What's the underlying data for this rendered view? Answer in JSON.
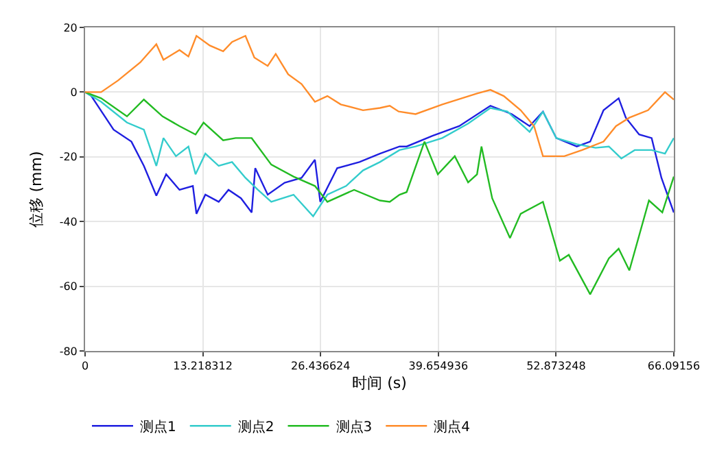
{
  "chart_data": {
    "type": "line",
    "xlabel": "时间 (s)",
    "ylabel": "位移 (mm)",
    "xlim": [
      0,
      66.09156
    ],
    "xticks": [
      0,
      13.218312,
      26.436624,
      39.654936,
      52.873248,
      66.09156
    ],
    "ylim": [
      -80,
      20
    ],
    "yticks": [
      -80,
      -60,
      -40,
      -20,
      0,
      20
    ],
    "grid": true,
    "legend": "bottom left",
    "marker": "none",
    "line_style": "solid",
    "series": [
      {
        "name": "测点1",
        "color": "#1f1fe0",
        "x": [
          0,
          0.7,
          3.2,
          5.2,
          6.6,
          8.0,
          9.1,
          10.6,
          12.1,
          12.5,
          13.5,
          15.0,
          16.1,
          17.5,
          18.7,
          19.1,
          20.5,
          22.4,
          24.3,
          25.8,
          26.4,
          28.3,
          30.8,
          33.1,
          35.3,
          36.1,
          39.0,
          42.0,
          45.5,
          47.9,
          49.9,
          51.4,
          52.9,
          55.2,
          56.7,
          58.2,
          59.9,
          60.7,
          62.2,
          63.6,
          64.7,
          66.09
        ],
        "values": [
          0,
          -1.2,
          -11.6,
          -15.3,
          -22.8,
          -32,
          -25.4,
          -30.2,
          -29,
          -37.6,
          -31.7,
          -33.9,
          -30.2,
          -32.8,
          -37.2,
          -23.5,
          -31.7,
          -28,
          -26.5,
          -20.9,
          -33.9,
          -23.5,
          -21.6,
          -19,
          -16.8,
          -16.8,
          -13.5,
          -10.5,
          -4.2,
          -6.8,
          -10.5,
          -6,
          -14.2,
          -16.8,
          -15.3,
          -5.6,
          -1.9,
          -7.9,
          -13.1,
          -14.2,
          -26.5,
          -37.2
        ]
      },
      {
        "name": "测点2",
        "color": "#33cccc",
        "x": [
          0,
          1.8,
          4.7,
          6.6,
          8.0,
          8.8,
          10.2,
          11.6,
          12.4,
          13.5,
          15.0,
          16.5,
          18.0,
          19.4,
          20.9,
          23.4,
          25.6,
          27.2,
          29.3,
          31.2,
          33.1,
          35.3,
          37.1,
          40.1,
          43.0,
          45.5,
          47.4,
          49.9,
          51.4,
          52.9,
          55.2,
          57.3,
          58.8,
          60.2,
          61.7,
          63.6,
          65.1,
          66.09
        ],
        "values": [
          0,
          -3,
          -9.4,
          -11.6,
          -22.8,
          -14.2,
          -19.8,
          -16.8,
          -25.4,
          -19,
          -22.8,
          -21.6,
          -26.5,
          -30.2,
          -33.9,
          -31.7,
          -38.4,
          -31.7,
          -29,
          -24.2,
          -21.6,
          -17.9,
          -16.8,
          -14.2,
          -9.7,
          -4.9,
          -6,
          -12.3,
          -6,
          -14.2,
          -16.1,
          -17.2,
          -16.8,
          -20.5,
          -17.9,
          -17.9,
          -19,
          -14.2
        ]
      },
      {
        "name": "测点3",
        "color": "#22bb22",
        "x": [
          0,
          1.8,
          4.7,
          6.6,
          8.7,
          10.6,
          12.4,
          13.3,
          15.5,
          16.9,
          18.7,
          20.9,
          23.4,
          25.8,
          27.2,
          30.2,
          33.1,
          34.2,
          35.3,
          36.1,
          38.1,
          39.6,
          41.5,
          43.0,
          44.0,
          44.5,
          45.7,
          47.7,
          48.9,
          51.4,
          53.3,
          54.3,
          56.7,
          58.8,
          59.9,
          61.1,
          63.3,
          64.8,
          66.09
        ],
        "values": [
          0,
          -1.9,
          -7.5,
          -2.3,
          -7.5,
          -10.5,
          -13.1,
          -9.4,
          -14.9,
          -14.2,
          -14.2,
          -22.4,
          -26.1,
          -29,
          -33.9,
          -30.2,
          -33.5,
          -33.9,
          -31.7,
          -30.9,
          -15.3,
          -25.4,
          -19.8,
          -27.9,
          -25.4,
          -16.8,
          -32.8,
          -45.1,
          -37.6,
          -33.9,
          -52.1,
          -50.3,
          -62.5,
          -51.4,
          -48.4,
          -55.1,
          -33.5,
          -37.2,
          -26.1
        ]
      },
      {
        "name": "测点4",
        "color": "#ff8c2a",
        "x": [
          0,
          1.8,
          3.7,
          6.2,
          8.0,
          8.8,
          10.6,
          11.6,
          12.5,
          14.0,
          15.5,
          16.5,
          18.0,
          19.0,
          20.5,
          21.4,
          22.8,
          24.3,
          25.8,
          27.2,
          28.7,
          31.2,
          33.1,
          34.2,
          35.2,
          37.1,
          40.1,
          44.0,
          45.5,
          47.0,
          48.9,
          50.4,
          51.4,
          53.8,
          55.8,
          58.2,
          59.6,
          61.1,
          63.2,
          65.1,
          66.09
        ],
        "values": [
          0,
          0,
          3.6,
          9.2,
          14.8,
          10,
          13,
          11,
          17.4,
          14.4,
          12.6,
          15.5,
          17.4,
          10.7,
          8.1,
          11.8,
          5.5,
          2.5,
          -3,
          -1.2,
          -3.8,
          -5.6,
          -4.9,
          -4.2,
          -6,
          -6.8,
          -3.8,
          -0.4,
          0.7,
          -1.2,
          -5.6,
          -10.5,
          -19.8,
          -19.8,
          -17.9,
          -15.3,
          -10.5,
          -7.9,
          -5.6,
          0,
          -2.3
        ]
      }
    ]
  }
}
